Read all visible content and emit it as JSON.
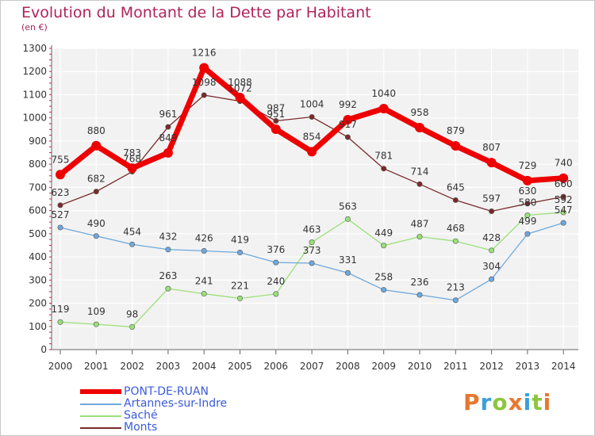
{
  "title": "Evolution du Montant de la Dette par Habitant",
  "subtitle": "(en €)",
  "logo": "Proxiti",
  "chart_data": {
    "type": "line",
    "title": "Evolution du Montant de la Dette par Habitant",
    "subtitle": "(en €)",
    "x": [
      "2000",
      "2001",
      "2002",
      "2003",
      "2004",
      "2005",
      "2006",
      "2007",
      "2008",
      "2009",
      "2010",
      "2011",
      "2012",
      "2013",
      "2014"
    ],
    "ylim": [
      0,
      1300
    ],
    "yticks": [
      "0",
      "100",
      "200",
      "300",
      "400",
      "500",
      "600",
      "700",
      "800",
      "900",
      "1000",
      "1100",
      "1200",
      "1300"
    ],
    "grid": true,
    "legend_position": "bottom-left",
    "series": [
      {
        "name": "PONT-DE-RUAN",
        "color": "#ee0000",
        "values": [
          755,
          880,
          783,
          849,
          1216,
          1088,
          951,
          854,
          992,
          1040,
          958,
          879,
          807,
          729,
          740
        ]
      },
      {
        "name": "Artannes-sur-Indre",
        "color": "#6fa8dc",
        "values": [
          527,
          490,
          454,
          432,
          426,
          419,
          376,
          373,
          331,
          258,
          236,
          213,
          304,
          499,
          547
        ]
      },
      {
        "name": "Saché",
        "color": "#9be07a",
        "values": [
          119,
          109,
          98,
          263,
          241,
          221,
          240,
          463,
          563,
          449,
          487,
          468,
          428,
          580,
          592
        ]
      },
      {
        "name": "Monts",
        "color": "#7a2a2a",
        "values": [
          623,
          682,
          768,
          961,
          1098,
          1072,
          987,
          1004,
          917,
          781,
          714,
          645,
          597,
          630,
          660
        ]
      }
    ]
  }
}
